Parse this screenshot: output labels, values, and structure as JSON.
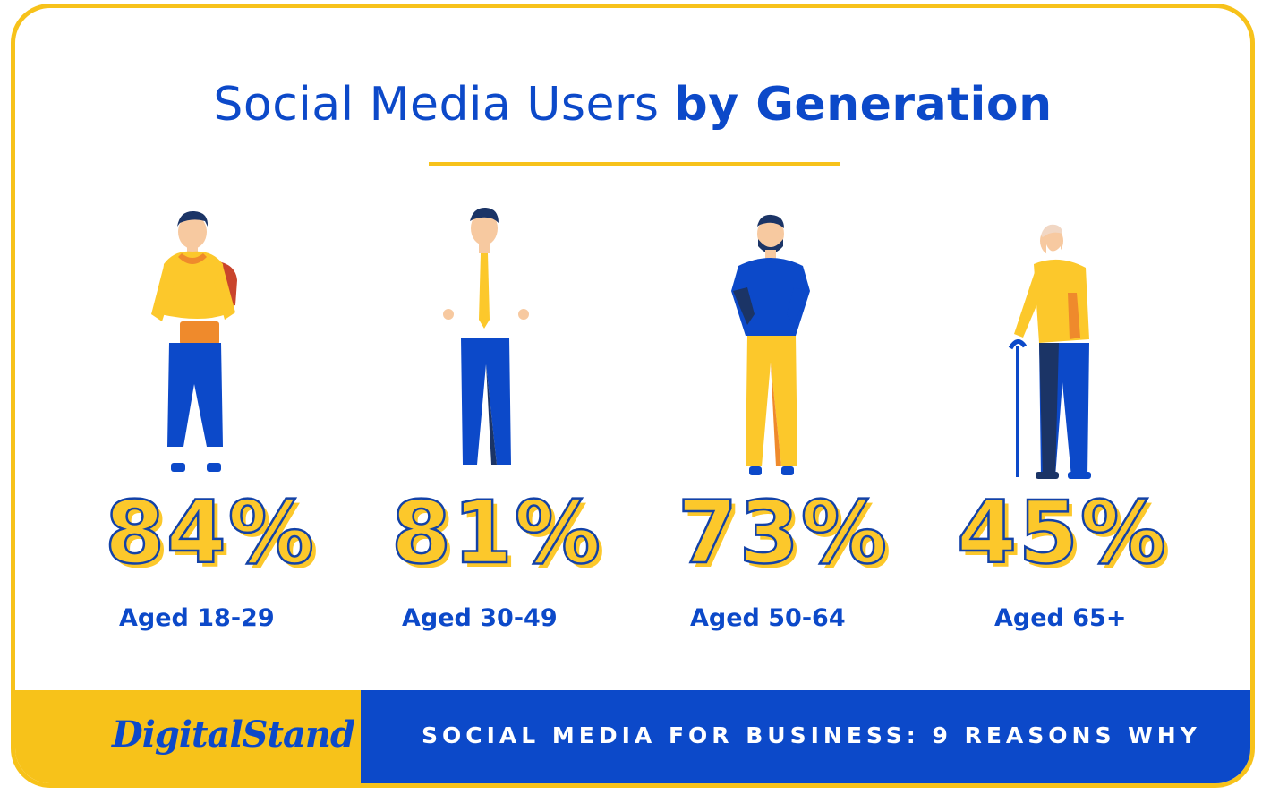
{
  "title": {
    "light": "Social Media Users",
    "bold": "by Generation"
  },
  "groups": [
    {
      "percent": "84%",
      "label": "Aged 18-29"
    },
    {
      "percent": "81%",
      "label": "Aged 30-49"
    },
    {
      "percent": "73%",
      "label": "Aged 50-64"
    },
    {
      "percent": "45%",
      "label": "Aged 65+"
    }
  ],
  "footer": {
    "logo": "DigitalStand",
    "tagline": "SOCIAL MEDIA FOR BUSINESS: 9 REASONS WHY"
  },
  "colors": {
    "blue": "#0c49c9",
    "yellow": "#f7c21a",
    "navy": "#1b3466",
    "orange": "#f08a2a"
  }
}
